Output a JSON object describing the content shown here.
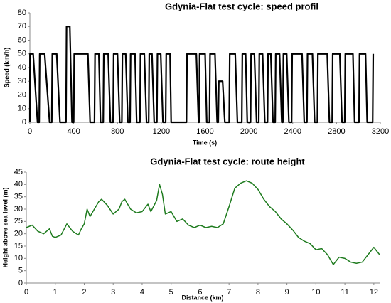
{
  "chart_data": [
    {
      "type": "line",
      "title": "Gdynia-Flat test cycle: speed profil",
      "x_label": "Time (s)",
      "y_label": "Speed (km/h)",
      "xlim": [
        0,
        3200
      ],
      "xticks": [
        0,
        400,
        800,
        1200,
        1600,
        2000,
        2400,
        2800,
        3200
      ],
      "ylim": [
        0,
        80
      ],
      "yticks": [
        0,
        10,
        20,
        30,
        40,
        50,
        60,
        70,
        80
      ],
      "grid": false,
      "series": [
        {
          "name": "Speed",
          "color": "#000000",
          "x": [
            0,
            1,
            30,
            70,
            85,
            90,
            135,
            180,
            200,
            205,
            245,
            275,
            330,
            335,
            365,
            385,
            400,
            405,
            530,
            550,
            590,
            595,
            630,
            645,
            670,
            675,
            715,
            735,
            760,
            765,
            800,
            820,
            840,
            845,
            875,
            895,
            915,
            920,
            960,
            975,
            1005,
            1010,
            1045,
            1065,
            1085,
            1090,
            1115,
            1135,
            1160,
            1165,
            1195,
            1215,
            1240,
            1245,
            1280,
            1290,
            1430,
            1435,
            1520,
            1540,
            1545,
            1550,
            1600,
            1615,
            1640,
            1645,
            1690,
            1710,
            1720,
            1725,
            1760,
            1780,
            1820,
            1825,
            1875,
            1895,
            1935,
            1940,
            1970,
            1985,
            2015,
            2020,
            2050,
            2070,
            2090,
            2095,
            2125,
            2145,
            2170,
            2175,
            2200,
            2220,
            2240,
            2245,
            2280,
            2300,
            2310,
            2315,
            2345,
            2365,
            2390,
            2395,
            2485,
            2505,
            2530,
            2535,
            2580,
            2600,
            2625,
            2630,
            2715,
            2735,
            2760,
            2765,
            2830,
            2850,
            2875,
            2880,
            2950,
            2965,
            3005,
            3010,
            3065,
            3080,
            3130,
            3135
          ],
          "values": [
            0,
            50,
            50,
            0,
            0,
            50,
            50,
            0,
            0,
            50,
            50,
            0,
            0,
            70,
            70,
            0,
            0,
            50,
            50,
            0,
            0,
            50,
            50,
            0,
            0,
            50,
            50,
            0,
            0,
            50,
            50,
            0,
            0,
            50,
            50,
            0,
            0,
            50,
            50,
            0,
            0,
            50,
            50,
            0,
            0,
            50,
            50,
            0,
            0,
            50,
            50,
            0,
            0,
            50,
            50,
            0,
            0,
            50,
            50,
            0,
            0,
            50,
            50,
            0,
            0,
            50,
            50,
            0,
            0,
            30,
            30,
            0,
            0,
            50,
            50,
            0,
            0,
            50,
            50,
            0,
            0,
            50,
            50,
            0,
            0,
            50,
            50,
            0,
            0,
            50,
            50,
            0,
            0,
            50,
            50,
            0,
            0,
            50,
            50,
            0,
            0,
            50,
            50,
            0,
            0,
            50,
            50,
            0,
            0,
            50,
            50,
            0,
            0,
            50,
            50,
            0,
            0,
            50,
            50,
            0,
            0,
            50,
            50,
            0,
            0,
            50
          ]
        }
      ]
    },
    {
      "type": "line",
      "title": "Gdynia-Flat test cycle: route height",
      "x_label": "Distance (km)",
      "y_label": "Height above sea level (m)",
      "xlim": [
        0,
        12.2
      ],
      "xticks": [
        0,
        1,
        2,
        3,
        4,
        5,
        6,
        7,
        8,
        9,
        10,
        11,
        12
      ],
      "ylim": [
        0,
        45
      ],
      "yticks": [
        0,
        5,
        10,
        15,
        20,
        25,
        30,
        35,
        40,
        45
      ],
      "grid": false,
      "series": [
        {
          "name": "Height",
          "color": "#1e7b1e",
          "x": [
            0,
            0.2,
            0.4,
            0.6,
            0.8,
            0.9,
            1.0,
            1.2,
            1.4,
            1.6,
            1.8,
            1.9,
            2.0,
            2.1,
            2.2,
            2.4,
            2.5,
            2.6,
            2.8,
            3.0,
            3.2,
            3.3,
            3.4,
            3.6,
            3.8,
            4.0,
            4.2,
            4.3,
            4.5,
            4.6,
            4.7,
            4.8,
            5.0,
            5.2,
            5.4,
            5.6,
            5.8,
            6.0,
            6.2,
            6.4,
            6.6,
            6.8,
            7.0,
            7.2,
            7.4,
            7.6,
            7.8,
            8.0,
            8.2,
            8.4,
            8.6,
            8.8,
            9.0,
            9.2,
            9.4,
            9.6,
            9.8,
            10.0,
            10.2,
            10.4,
            10.6,
            10.8,
            11.0,
            11.2,
            11.4,
            11.6,
            11.8,
            12.0,
            12.2
          ],
          "values": [
            22.5,
            23.5,
            21,
            20,
            22,
            19,
            18.5,
            19.5,
            24,
            21,
            19.5,
            22,
            24,
            30,
            27,
            31,
            33,
            34,
            31.5,
            28,
            30,
            33,
            34,
            30,
            28.5,
            29,
            32,
            29,
            33.5,
            40,
            36,
            28,
            29,
            25,
            26,
            23.5,
            22.5,
            23.5,
            22.5,
            23,
            22.5,
            24,
            31,
            38.5,
            40.5,
            41.5,
            40.5,
            38,
            34,
            31,
            29,
            26,
            24,
            21.5,
            18.5,
            17,
            16,
            13.5,
            14,
            11.5,
            7.5,
            10.5,
            10,
            8.5,
            8,
            8.5,
            11.5,
            14.5,
            11.5
          ]
        }
      ]
    }
  ]
}
